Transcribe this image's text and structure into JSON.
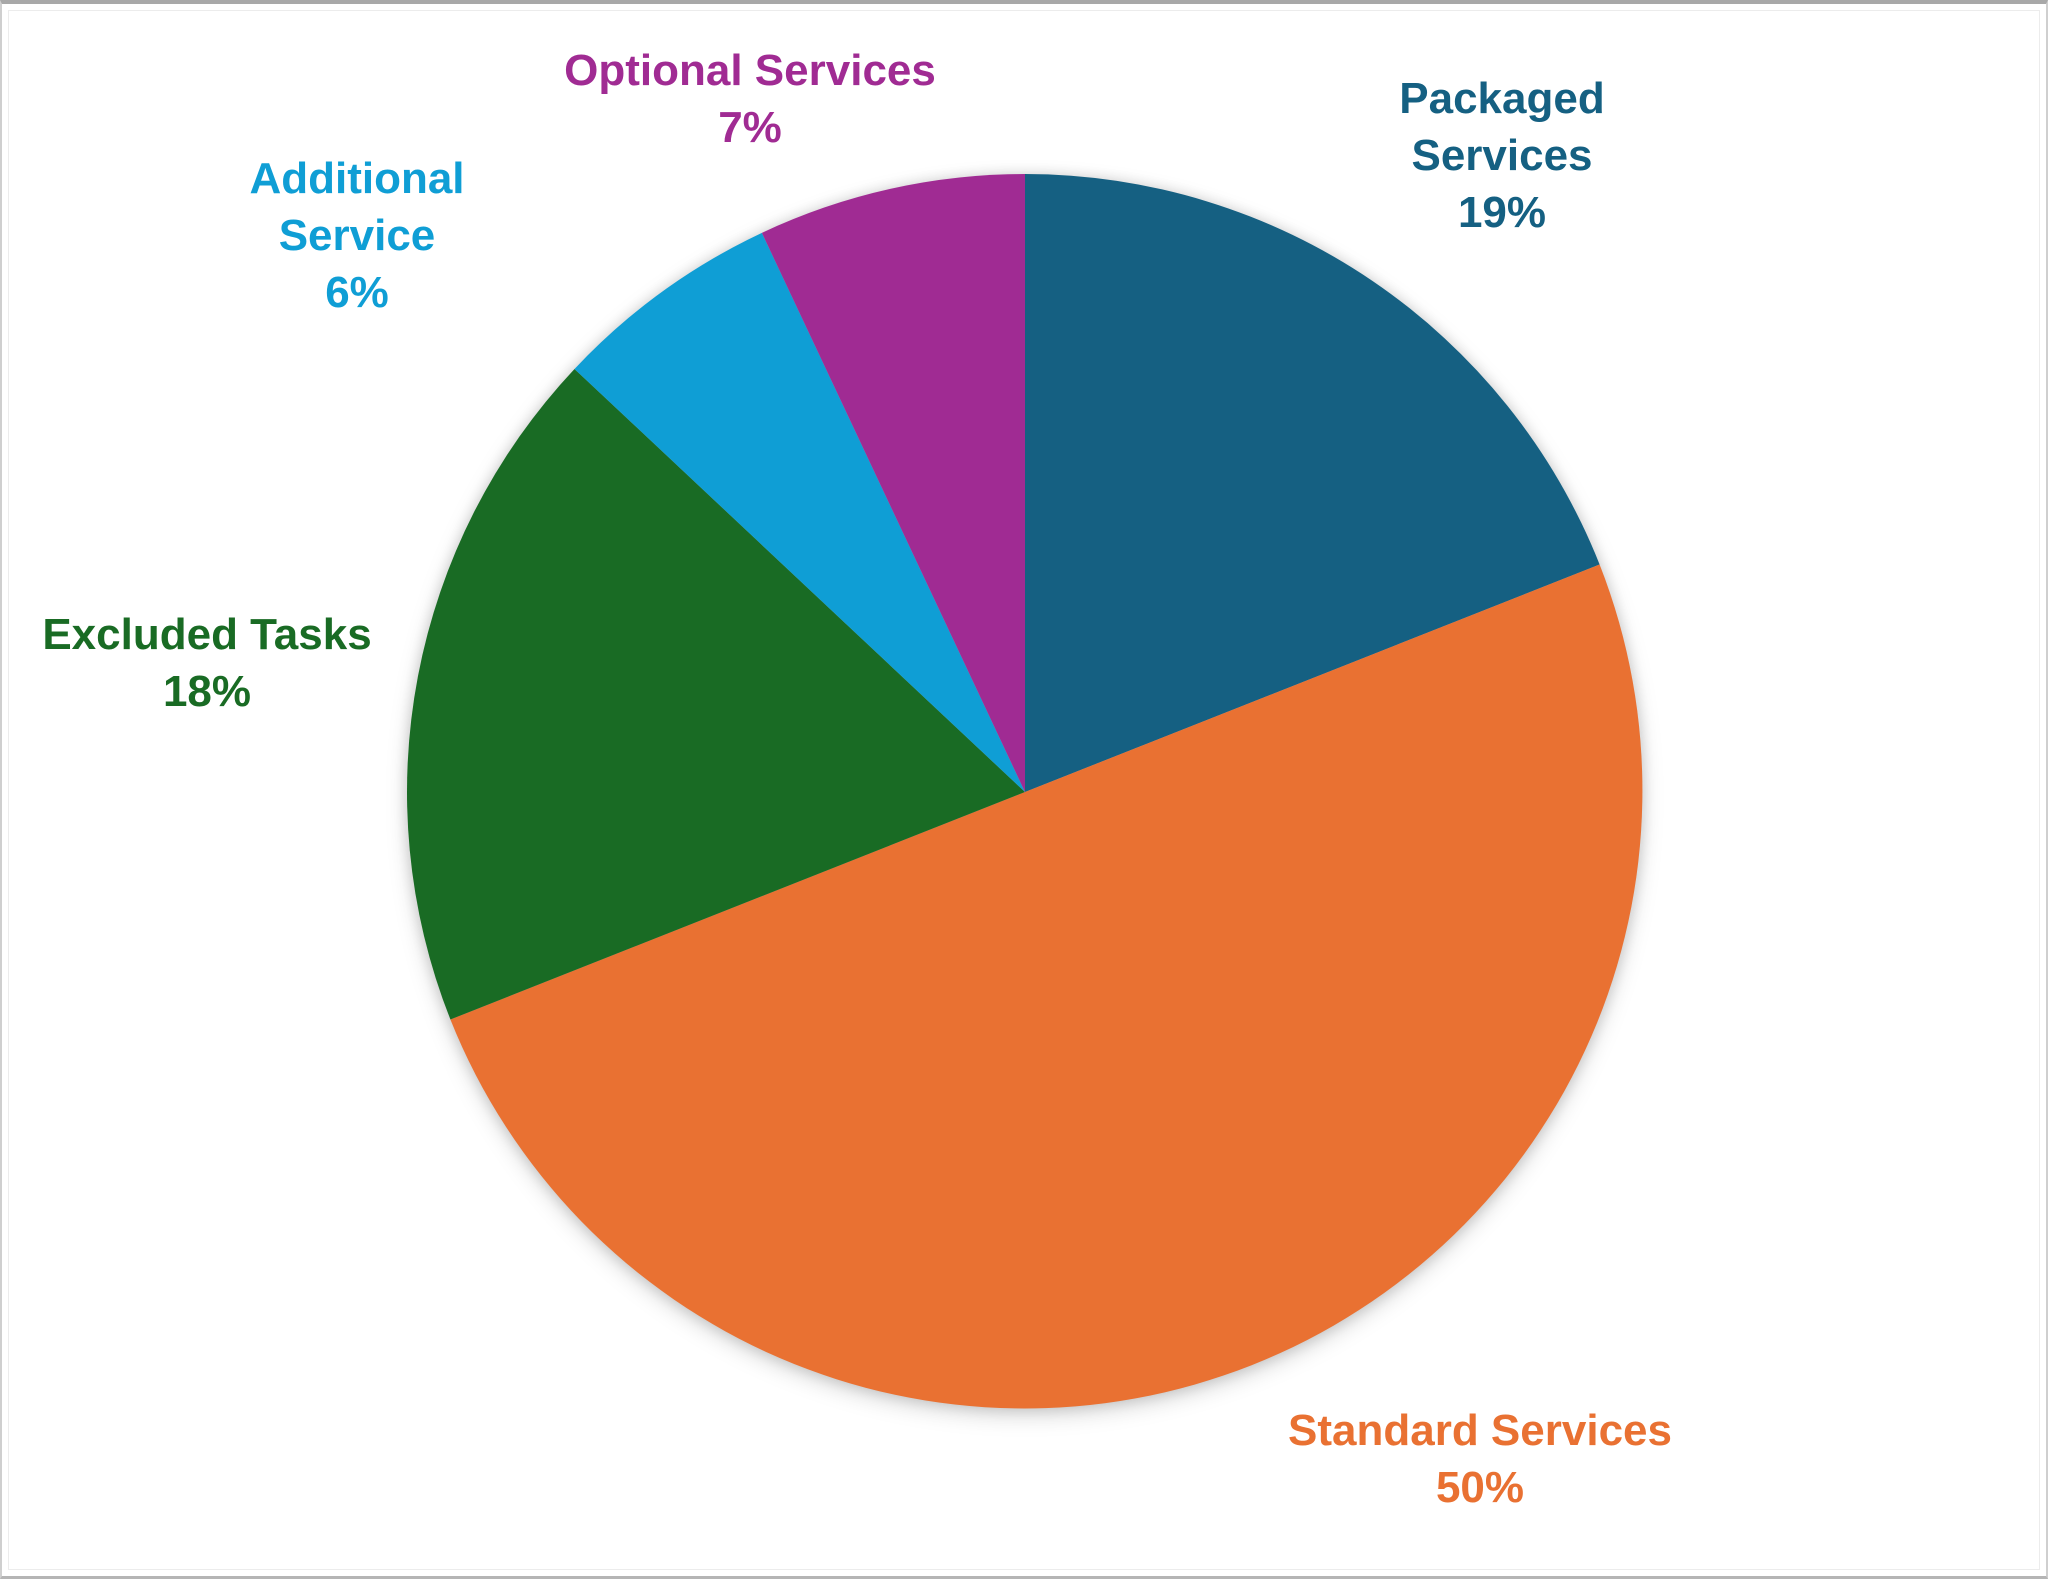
{
  "chart_data": {
    "type": "pie",
    "title": "",
    "categories": [
      "Packaged Services",
      "Standard Services",
      "Excluded Tasks",
      "Additional Service",
      "Optional Services"
    ],
    "values": [
      19,
      50,
      18,
      6,
      7
    ],
    "pct_labels": [
      "19%",
      "50%",
      "18%",
      "6%",
      "7%"
    ],
    "colors": [
      "#156082",
      "#E97132",
      "#196B24",
      "#0F9ED5",
      "#A02B93"
    ],
    "start_angle_deg": 0,
    "direction": "clockwise",
    "legend": "none",
    "label_style": "category name and percentage outside slice, text colored to match slice"
  }
}
